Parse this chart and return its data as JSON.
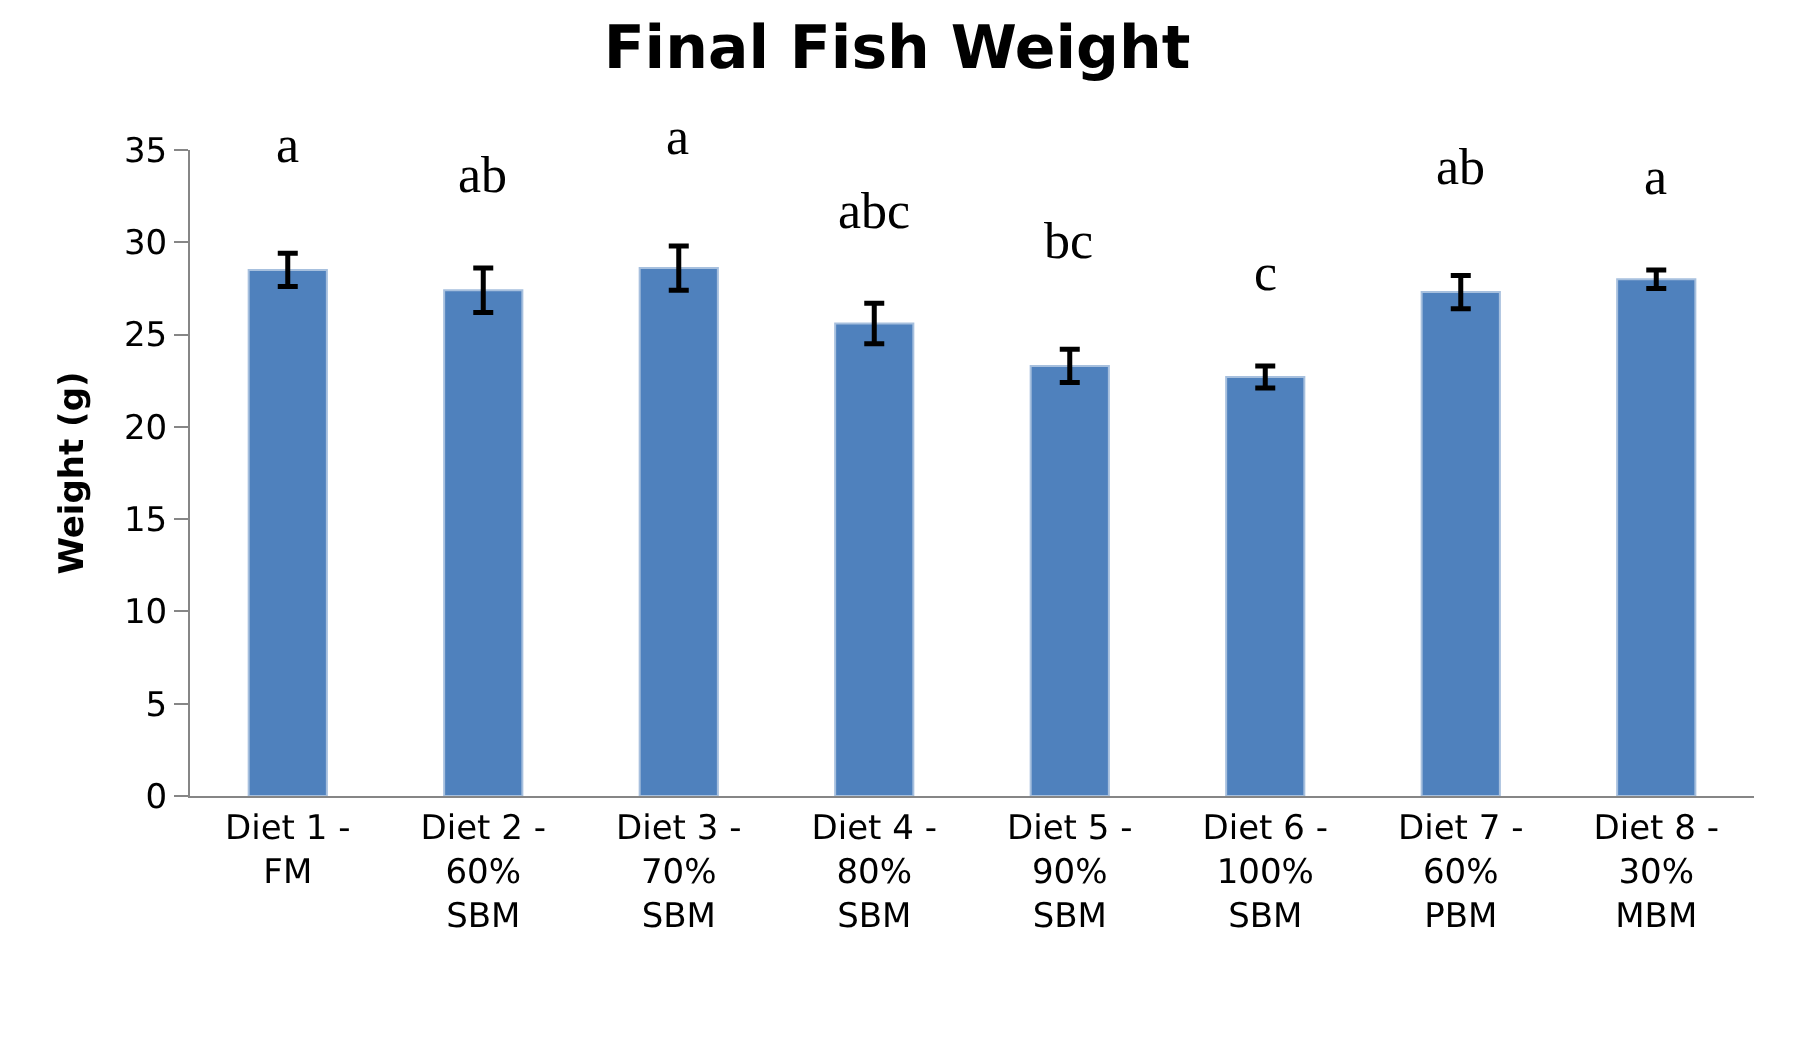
{
  "chart_data": {
    "type": "bar",
    "title": "Final Fish Weight",
    "ylabel": "Weight (g)",
    "categories": [
      "Diet 1 - FM",
      "Diet 2 - 60% SBM",
      "Diet 3 - 70% SBM",
      "Diet 4 - 80% SBM",
      "Diet 5 - 90% SBM",
      "Diet 6 - 100% SBM",
      "Diet 7 - 60% PBM",
      "Diet 8 - 30% MBM"
    ],
    "values": [
      28.5,
      27.4,
      28.6,
      25.6,
      23.3,
      22.7,
      27.3,
      28.0
    ],
    "errors": [
      0.9,
      1.2,
      1.2,
      1.1,
      0.9,
      0.6,
      0.9,
      0.5
    ],
    "color": "#4f81bd",
    "ylim": [
      0,
      35
    ],
    "yticks": [
      0,
      5,
      10,
      15,
      20,
      25,
      30,
      35
    ],
    "annotations": [
      "a",
      "ab",
      "a",
      "abc",
      "bc",
      "c",
      "ab",
      "a"
    ]
  }
}
